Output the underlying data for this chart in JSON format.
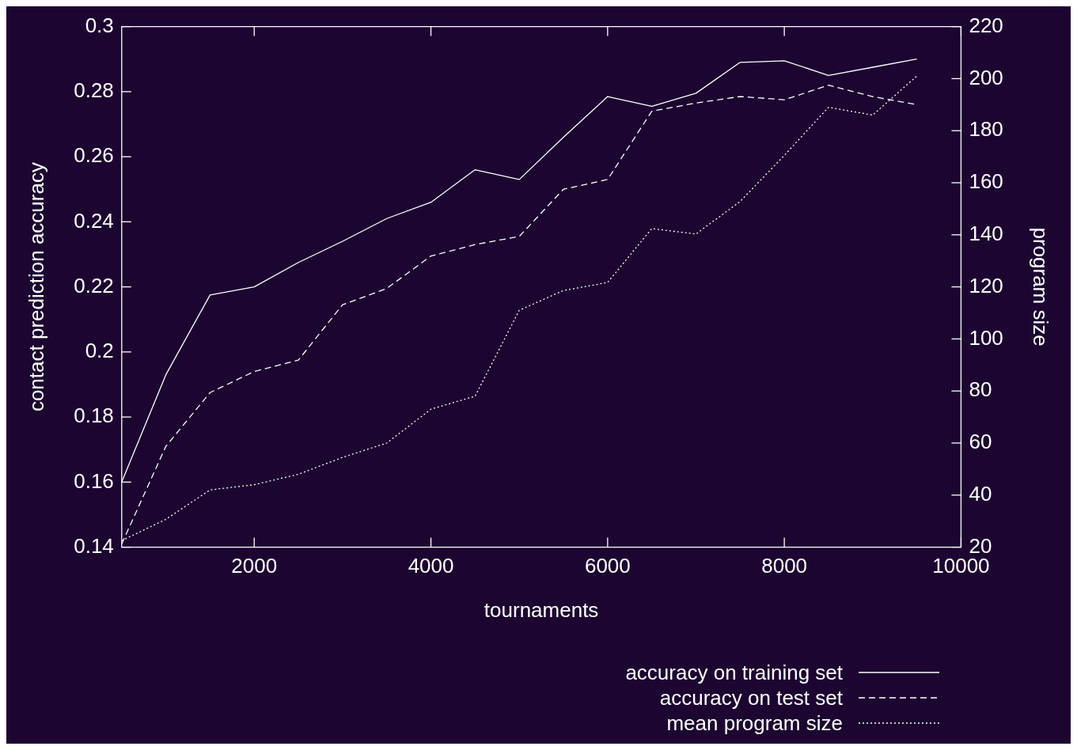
{
  "chart_data": {
    "type": "line",
    "xlabel": "tournaments",
    "ylabel": "contact prediction accuracy",
    "y2label": "program size",
    "x": [
      500,
      1000,
      1500,
      2000,
      2500,
      3000,
      3500,
      4000,
      4500,
      5000,
      5500,
      6000,
      6500,
      7000,
      7500,
      8000,
      8500,
      9000,
      9500
    ],
    "xlim": [
      500,
      10000
    ],
    "xticks": [
      2000,
      4000,
      6000,
      8000,
      10000
    ],
    "ylim": [
      0.14,
      0.3
    ],
    "yticks": [
      0.14,
      0.16,
      0.18,
      0.2,
      0.22,
      0.24,
      0.26,
      0.28,
      0.3
    ],
    "y2lim": [
      20,
      220
    ],
    "y2ticks": [
      20,
      40,
      60,
      80,
      100,
      120,
      140,
      160,
      180,
      200,
      220
    ],
    "grid": false,
    "legend": "bottom right",
    "marker": "none",
    "series": [
      {
        "name": "accuracy on training set",
        "color": "#ffffff",
        "line_style": "solid",
        "values": [
          0.16,
          0.193,
          0.2175,
          0.22,
          0.2275,
          0.234,
          0.241,
          0.246,
          0.256,
          0.253,
          0.266,
          0.2785,
          0.2755,
          0.2795,
          0.289,
          0.2895,
          0.285,
          0.2875,
          0.29
        ]
      },
      {
        "name": "accuracy on test set",
        "color": "#ffffff",
        "line_style": "dashed",
        "values": [
          0.141,
          0.171,
          0.1875,
          0.194,
          0.1975,
          0.2145,
          0.2195,
          0.2295,
          0.233,
          0.2355,
          0.25,
          0.253,
          0.274,
          0.2765,
          0.2785,
          0.2775,
          0.282,
          0.2785,
          0.276
        ]
      },
      {
        "name": "mean program size",
        "color": "#ffffff",
        "line_style": "dotted",
        "axis": "y2",
        "values": [
          22.5,
          30.7,
          42,
          44,
          48,
          54.5,
          60,
          73,
          78,
          111,
          118.6,
          121.7,
          142.4,
          140.3,
          152.8,
          170.5,
          189,
          186,
          201
        ]
      }
    ]
  }
}
